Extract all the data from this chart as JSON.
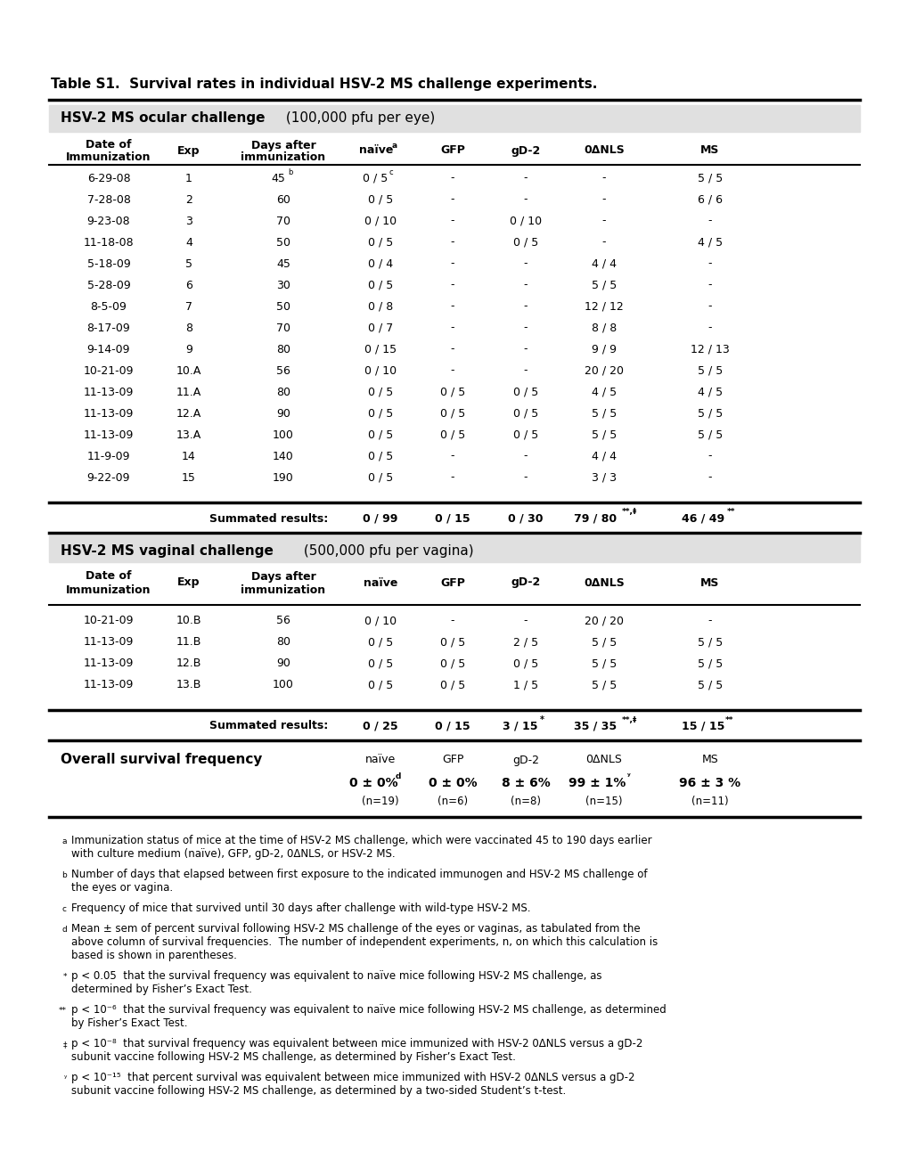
{
  "title": "Table S1.  Survival rates in individual HSV-2 MS challenge experiments.",
  "section1_header_bold": "HSV-2 MS ocular challenge",
  "section1_header_normal": " (100,000 pfu per eye)",
  "section2_header_bold": "HSV-2 MS vaginal challenge",
  "section2_header_normal": " (500,000 pfu per vagina)",
  "ocular_data": [
    [
      "6-29-08",
      "1",
      "45",
      "b",
      "0 / 5",
      "c",
      "-",
      "-",
      "-",
      "5 / 5"
    ],
    [
      "7-28-08",
      "2",
      "60",
      "",
      "0 / 5",
      "",
      "-",
      "-",
      "-",
      "6 / 6"
    ],
    [
      "9-23-08",
      "3",
      "70",
      "",
      "0 / 10",
      "",
      "-",
      "0 / 10",
      "-",
      "-"
    ],
    [
      "11-18-08",
      "4",
      "50",
      "",
      "0 / 5",
      "",
      "-",
      "0 / 5",
      "-",
      "4 / 5"
    ],
    [
      "5-18-09",
      "5",
      "45",
      "",
      "0 / 4",
      "",
      "-",
      "-",
      "4 / 4",
      "-"
    ],
    [
      "5-28-09",
      "6",
      "30",
      "",
      "0 / 5",
      "",
      "-",
      "-",
      "5 / 5",
      "-"
    ],
    [
      "8-5-09",
      "7",
      "50",
      "",
      "0 / 8",
      "",
      "-",
      "-",
      "12 / 12",
      "-"
    ],
    [
      "8-17-09",
      "8",
      "70",
      "",
      "0 / 7",
      "",
      "-",
      "-",
      "8 / 8",
      "-"
    ],
    [
      "9-14-09",
      "9",
      "80",
      "",
      "0 / 15",
      "",
      "-",
      "-",
      "9 / 9",
      "12 / 13"
    ],
    [
      "10-21-09",
      "10.A",
      "56",
      "",
      "0 / 10",
      "",
      "-",
      "-",
      "20 / 20",
      "5 / 5"
    ],
    [
      "11-13-09",
      "11.A",
      "80",
      "",
      "0 / 5",
      "",
      "0 / 5",
      "0 / 5",
      "4 / 5",
      "4 / 5"
    ],
    [
      "11-13-09",
      "12.A",
      "90",
      "",
      "0 / 5",
      "",
      "0 / 5",
      "0 / 5",
      "5 / 5",
      "5 / 5"
    ],
    [
      "11-13-09",
      "13.A",
      "100",
      "",
      "0 / 5",
      "",
      "0 / 5",
      "0 / 5",
      "5 / 5",
      "5 / 5"
    ],
    [
      "11-9-09",
      "14",
      "140",
      "",
      "0 / 5",
      "",
      "-",
      "-",
      "4 / 4",
      "-"
    ],
    [
      "9-22-09",
      "15",
      "190",
      "",
      "0 / 5",
      "",
      "-",
      "-",
      "3 / 3",
      "-"
    ]
  ],
  "vaginal_data": [
    [
      "10-21-09",
      "10.B",
      "56",
      "0 / 10",
      "-",
      "-",
      "20 / 20",
      "-"
    ],
    [
      "11-13-09",
      "11.B",
      "80",
      "0 / 5",
      "0 / 5",
      "2 / 5",
      "5 / 5",
      "5 / 5"
    ],
    [
      "11-13-09",
      "12.B",
      "90",
      "0 / 5",
      "0 / 5",
      "0 / 5",
      "5 / 5",
      "5 / 5"
    ],
    [
      "11-13-09",
      "13.B",
      "100",
      "0 / 5",
      "0 / 5",
      "1 / 5",
      "5 / 5",
      "5 / 5"
    ]
  ],
  "overall_headers": [
    "naïve",
    "GFP",
    "gD-2",
    "0ΔNLS",
    "MS"
  ],
  "overall_values": [
    "0 ± 0%",
    "0 ± 0%",
    "8 ± 6%",
    "99 ± 1%",
    "96 ± 3 %"
  ],
  "overall_n": [
    "(n=19)",
    "(n=6)",
    "(n=8)",
    "(n=15)",
    "(n=11)"
  ],
  "footnotes": [
    [
      "a",
      "Immunization status of mice at the time of HSV-2 MS challenge, which were vaccinated 45 to 190 days earlier\nwith culture medium (naïve), GFP, gD-2, 0ΔNLS, or HSV-2 MS."
    ],
    [
      "b",
      "Number of days that elapsed between first exposure to the indicated immunogen and HSV-2 MS challenge of\nthe eyes or vagina."
    ],
    [
      "c",
      "Frequency of mice that survived until 30 days after challenge with wild-type HSV-2 MS."
    ],
    [
      "d",
      "Mean ± sem of percent survival following HSV-2 MS challenge of the eyes or vaginas, as tabulated from the\nabove column of survival frequencies.  The number of independent experiments, n, on which this calculation is\nbased is shown in parentheses."
    ],
    [
      "*",
      "p < 0.05  that the survival frequency was equivalent to naïve mice following HSV-2 MS challenge, as\ndetermined by Fisher’s Exact Test."
    ],
    [
      "**",
      "p < 10⁻⁶  that the survival frequency was equivalent to naïve mice following HSV-2 MS challenge, as determined\nby Fisher’s Exact Test."
    ],
    [
      "‡",
      "p < 10⁻⁸  that survival frequency was equivalent between mice immunized with HSV-2 0ΔNLS versus a gD-2\nsubunit vaccine following HSV-2 MS challenge, as determined by Fisher’s Exact Test."
    ],
    [
      "ʸ",
      "p < 10⁻¹⁵  that percent survival was equivalent between mice immunized with HSV-2 0ΔNLS versus a gD-2\nsubunit vaccine following HSV-2 MS challenge, as determined by a two-sided Student’s t-test."
    ]
  ]
}
